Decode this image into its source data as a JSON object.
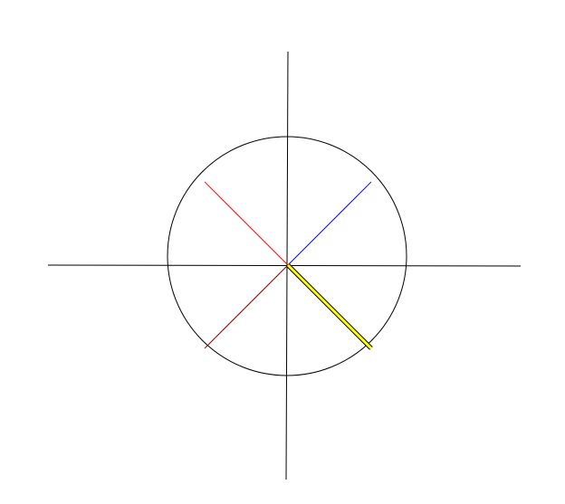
{
  "diagram": {
    "axis_color": "#000000",
    "circle_color": "#000000",
    "background": "#ffffff",
    "rays": [
      {
        "name": "ray-upper-left",
        "color": "#ff0000",
        "angle_deg": 135
      },
      {
        "name": "ray-upper-right",
        "color": "#0000ff",
        "angle_deg": 45
      },
      {
        "name": "ray-lower-left",
        "color": "#800000",
        "angle_deg": 225
      },
      {
        "name": "ray-lower-right",
        "color": "#ffff00",
        "outline_color": "#000000",
        "angle_deg": 315
      }
    ]
  }
}
